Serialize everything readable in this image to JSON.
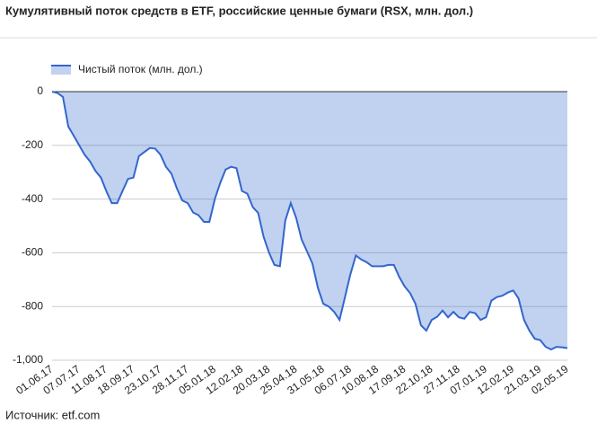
{
  "chart_data": {
    "type": "area",
    "title": "Кумулятивный поток средств в ETF, российские ценные бумаги (RSX, млн. дол.)",
    "source": "Источник: etf.com",
    "legend": "top-left",
    "grid": true,
    "categories": [
      "01.06.17",
      null,
      null,
      null,
      null,
      "07.07.17",
      null,
      null,
      null,
      null,
      "11.08.17",
      null,
      null,
      null,
      null,
      "18.09.17",
      null,
      null,
      null,
      null,
      "23.10.17",
      null,
      null,
      null,
      null,
      "28.11.17",
      null,
      null,
      null,
      null,
      "05.01.18",
      null,
      null,
      null,
      null,
      "12.02.18",
      null,
      null,
      null,
      null,
      "20.03.18",
      null,
      null,
      null,
      null,
      "25.04.18",
      null,
      null,
      null,
      null,
      "31.05.18",
      null,
      null,
      null,
      null,
      "06.07.18",
      null,
      null,
      null,
      null,
      "10.08.18",
      null,
      null,
      null,
      null,
      "17.09.18",
      null,
      null,
      null,
      null,
      "22.10.18",
      null,
      null,
      null,
      null,
      "27.11.18",
      null,
      null,
      null,
      null,
      "07.01.19",
      null,
      null,
      null,
      null,
      "12.02.19",
      null,
      null,
      null,
      null,
      "21.03.19",
      null,
      null,
      null,
      null,
      "02.05.19"
    ],
    "series": [
      {
        "name": "Чистый поток (млн. дол.)",
        "color": "#3366cc",
        "values": [
          0,
          -5,
          -20,
          -130,
          -165,
          -200,
          -235,
          -260,
          -295,
          -320,
          -370,
          -415,
          -415,
          -370,
          -325,
          -320,
          -240,
          -225,
          -210,
          -212,
          -235,
          -280,
          -305,
          -360,
          -405,
          -415,
          -450,
          -460,
          -485,
          -485,
          -400,
          -340,
          -290,
          -280,
          -285,
          -370,
          -380,
          -430,
          -452,
          -540,
          -600,
          -645,
          -650,
          -480,
          -415,
          -470,
          -550,
          -595,
          -640,
          -730,
          -790,
          -800,
          -820,
          -850,
          -765,
          -680,
          -610,
          -625,
          -635,
          -650,
          -650,
          -650,
          -645,
          -645,
          -690,
          -725,
          -750,
          -790,
          -870,
          -890,
          -850,
          -838,
          -815,
          -840,
          -820,
          -840,
          -845,
          -820,
          -825,
          -850,
          -840,
          -778,
          -765,
          -760,
          -748,
          -740,
          -770,
          -850,
          -890,
          -920,
          -925,
          -950,
          -960,
          -950,
          -952,
          -955
        ]
      }
    ],
    "ylim": [
      -1000,
      0
    ],
    "yticks": [
      0,
      -200,
      -400,
      -600,
      -800,
      {
        "value": -1000,
        "label": "-1,000"
      }
    ]
  }
}
